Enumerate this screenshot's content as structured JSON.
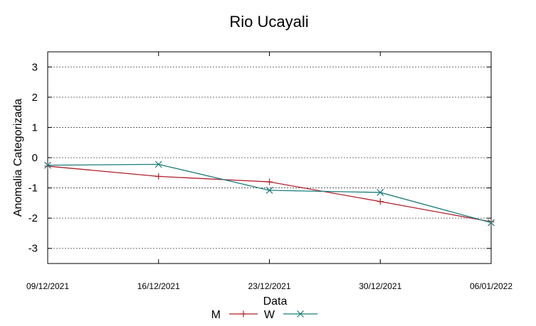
{
  "chart_data": {
    "type": "line",
    "title": "Rio Ucayali",
    "xlabel": "Data",
    "ylabel": "Anomalia Categorizada",
    "x": [
      "09/12/2021",
      "16/12/2021",
      "23/12/2021",
      "30/12/2021",
      "06/01/2022"
    ],
    "ylim": [
      -3.5,
      3.5
    ],
    "yticks": [
      3,
      2,
      1,
      0,
      -1,
      -2,
      -3
    ],
    "grid": true,
    "legend": "bottom",
    "series": [
      {
        "name": "M",
        "values": [
          -0.28,
          -0.62,
          -0.8,
          -1.45,
          -2.12
        ],
        "color": "#b0202a",
        "marker": "plus"
      },
      {
        "name": "W",
        "values": [
          -0.25,
          -0.22,
          -1.08,
          -1.15,
          -2.15
        ],
        "color": "#1a7c7c",
        "marker": "cross"
      }
    ]
  }
}
